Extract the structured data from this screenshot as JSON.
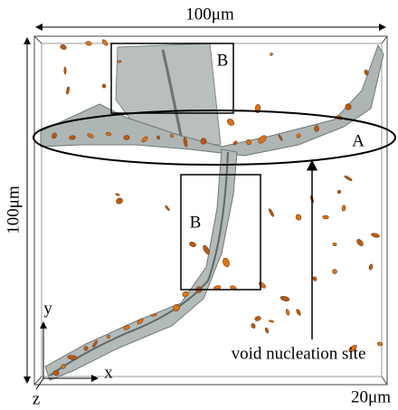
{
  "dimensions": {
    "width": "100μm",
    "height": "100μm",
    "depth": "20μm"
  },
  "regions": [
    "A",
    "B",
    "B"
  ],
  "annotation": "void nucleation site",
  "axes": {
    "x": "x",
    "y": "y",
    "z": "z"
  }
}
